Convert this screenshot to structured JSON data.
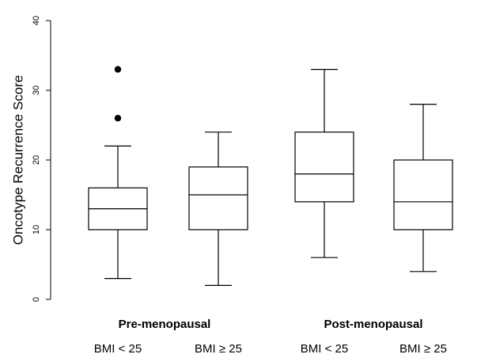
{
  "chart_data": {
    "type": "box",
    "title": "",
    "ylabel": "Oncotype Recurrence Score",
    "xlabel": "",
    "ylim": [
      0,
      40
    ],
    "yticks": [
      0,
      10,
      20,
      30,
      40
    ],
    "yticklabels": [
      "0",
      "10",
      "20",
      "30",
      "40"
    ],
    "grid": false,
    "groups": [
      "Pre-menopausal",
      "Post-menopausal"
    ],
    "categories": [
      "BMI < 25",
      "BMI ≥ 25",
      "BMI < 25",
      "BMI ≥ 25"
    ],
    "boxes": [
      {
        "group": 0,
        "whisker_low": 3,
        "q1": 10,
        "median": 13,
        "q3": 16,
        "whisker_high": 22,
        "outliers": [
          26,
          33
        ]
      },
      {
        "group": 0,
        "whisker_low": 2,
        "q1": 10,
        "median": 15,
        "q3": 19,
        "whisker_high": 24,
        "outliers": []
      },
      {
        "group": 1,
        "whisker_low": 6,
        "q1": 14,
        "median": 18,
        "q3": 24,
        "whisker_high": 33,
        "outliers": []
      },
      {
        "group": 1,
        "whisker_low": 4,
        "q1": 10,
        "median": 14,
        "q3": 20,
        "whisker_high": 28,
        "outliers": []
      }
    ],
    "colors": {
      "box_fill": "#ffffff",
      "line": "#000000"
    }
  }
}
